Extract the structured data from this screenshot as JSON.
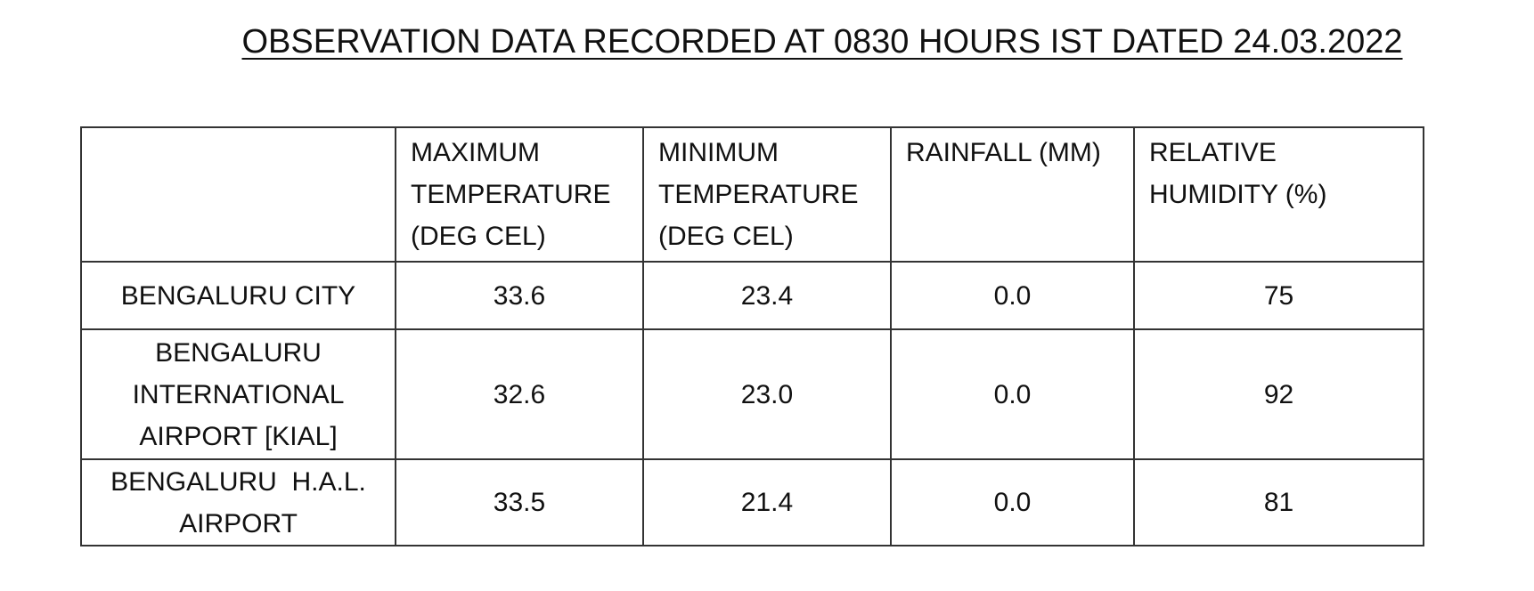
{
  "header": {
    "title": "OBSERVATION DATA RECORDED AT 0830 HOURS IST DATED 24.03.2022"
  },
  "table": {
    "columns": [
      "MAXIMUM TEMPERATURE (DEG CEL)",
      "MINIMUM TEMPERATURE (DEG CEL)",
      "RAINFALL (MM)",
      "RELATIVE HUMIDITY (%)"
    ],
    "rows": [
      [
        "BENGALURU CITY",
        "33.6",
        "23.4",
        "0.0",
        "75"
      ],
      [
        "BENGALURU INTERNATIONAL AIRPORT [KIAL]",
        "32.6",
        "23.0",
        "0.0",
        "92"
      ],
      [
        "BENGALURU  H.A.L. AIRPORT",
        "33.5",
        "21.4",
        "0.0",
        "81"
      ]
    ]
  }
}
